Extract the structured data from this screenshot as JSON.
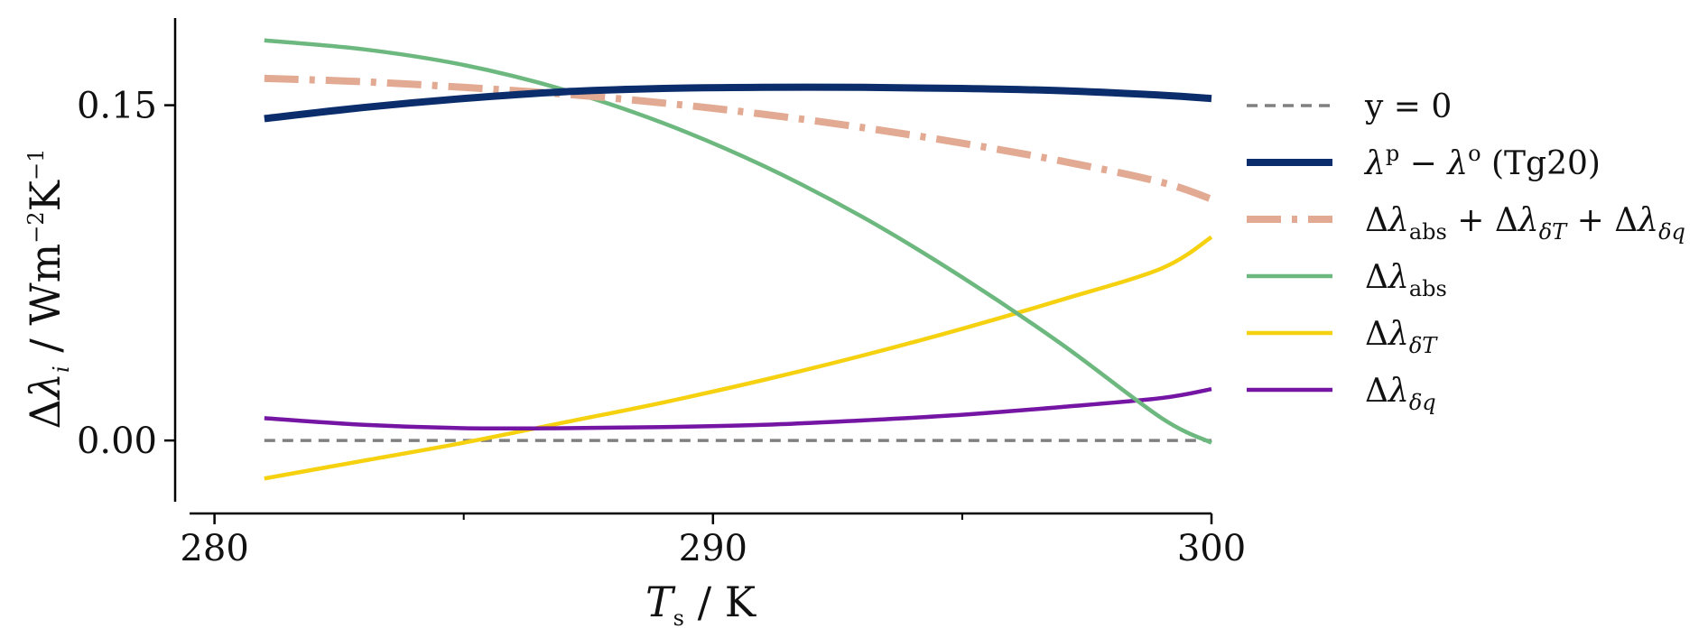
{
  "chart_data": {
    "type": "line",
    "xlabel": "T_s / K",
    "ylabel": "Δλ_i / Wm⁻²K⁻¹",
    "xlim": [
      279.5,
      300
    ],
    "ylim": [
      -0.027,
      0.189
    ],
    "xticks": [
      280,
      290,
      300
    ],
    "xtick_labels": [
      "280",
      "290",
      "300"
    ],
    "minor_xticks": [
      285,
      295
    ],
    "yticks": [
      0.0,
      0.15
    ],
    "ytick_labels": [
      "0.00",
      "0.15"
    ],
    "grid": false,
    "legend_position": "right",
    "series": [
      {
        "name": "y = 0",
        "color": "#808080",
        "style": "dashed",
        "x": [
          281,
          300
        ],
        "y": [
          0.0,
          0.0
        ]
      },
      {
        "name": "λᵖ − λᵒ (Tg20)",
        "color": "#0b2d6b",
        "style": "solid-thick",
        "x": [
          281,
          283,
          285,
          287,
          289,
          291,
          293,
          295,
          297,
          299,
          300
        ],
        "y": [
          0.144,
          0.149,
          0.153,
          0.156,
          0.1575,
          0.158,
          0.158,
          0.1575,
          0.1565,
          0.1545,
          0.153
        ]
      },
      {
        "name": "Δλ_abs + Δλ_δT + Δλ_δq",
        "color": "#e2aa92",
        "style": "dashdot",
        "x": [
          281,
          283,
          285,
          287,
          289,
          291,
          293,
          295,
          297,
          299,
          300
        ],
        "y": [
          0.162,
          0.1605,
          0.158,
          0.155,
          0.151,
          0.146,
          0.14,
          0.133,
          0.125,
          0.1155,
          0.108
        ]
      },
      {
        "name": "Δλ_abs",
        "color": "#6db87f",
        "style": "solid",
        "x": [
          281,
          283,
          285,
          287,
          289,
          291,
          293,
          295,
          297,
          299,
          300
        ],
        "y": [
          0.179,
          0.175,
          0.168,
          0.157,
          0.142,
          0.123,
          0.1,
          0.073,
          0.043,
          0.01,
          -0.001
        ]
      },
      {
        "name": "Δλ_δT",
        "color": "#f5d10f",
        "style": "solid",
        "x": [
          281,
          283,
          285,
          287,
          289,
          291,
          293,
          295,
          297,
          299,
          300
        ],
        "y": [
          -0.017,
          -0.009,
          -0.001,
          0.008,
          0.017,
          0.027,
          0.038,
          0.05,
          0.063,
          0.077,
          0.091
        ]
      },
      {
        "name": "Δλ_δq",
        "color": "#7515a4",
        "style": "solid",
        "x": [
          281,
          283,
          285,
          287,
          289,
          291,
          293,
          295,
          297,
          299,
          300
        ],
        "y": [
          0.01,
          0.007,
          0.0055,
          0.0055,
          0.006,
          0.007,
          0.009,
          0.0115,
          0.015,
          0.019,
          0.023
        ]
      }
    ]
  }
}
